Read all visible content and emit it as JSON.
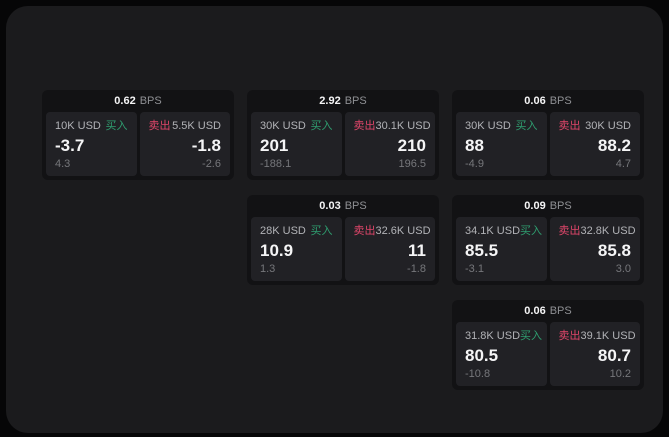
{
  "labels": {
    "buy": "买入",
    "sell": "卖出",
    "bps_unit": "BPS"
  },
  "colors": {
    "surface": "#1b1b1d",
    "card-bg": "#121214",
    "panel-bg": "#212125",
    "value-white": "#f5f5f6",
    "label-gray": "#b2b3b7",
    "sub-gray": "#76777b",
    "unit-gray": "#8f9094",
    "buy-green": "#2f9e70",
    "sell-red": "#e0466a"
  },
  "cards": [
    {
      "bps": "0.62",
      "buy": {
        "amount": "10K USD",
        "value": "-3.7",
        "sub": "4.3"
      },
      "sell": {
        "amount": "5.5K USD",
        "value": "-1.8",
        "sub": "-2.6"
      }
    },
    {
      "bps": "2.92",
      "buy": {
        "amount": "30K USD",
        "value": "201",
        "sub": "-188.1"
      },
      "sell": {
        "amount": "30.1K USD",
        "value": "210",
        "sub": "196.5"
      }
    },
    {
      "bps": "0.06",
      "buy": {
        "amount": "30K USD",
        "value": "88",
        "sub": "-4.9"
      },
      "sell": {
        "amount": "30K USD",
        "value": "88.2",
        "sub": "4.7"
      }
    },
    {
      "bps": "0.03",
      "buy": {
        "amount": "28K USD",
        "value": "10.9",
        "sub": "1.3"
      },
      "sell": {
        "amount": "32.6K USD",
        "value": "11",
        "sub": "-1.8"
      }
    },
    {
      "bps": "0.09",
      "buy": {
        "amount": "34.1K USD",
        "value": "85.5",
        "sub": "-3.1"
      },
      "sell": {
        "amount": "32.8K USD",
        "value": "85.8",
        "sub": "3.0"
      }
    },
    {
      "bps": "0.06",
      "buy": {
        "amount": "31.8K USD",
        "value": "80.5",
        "sub": "-10.8"
      },
      "sell": {
        "amount": "39.1K USD",
        "value": "80.7",
        "sub": "10.2"
      }
    }
  ]
}
